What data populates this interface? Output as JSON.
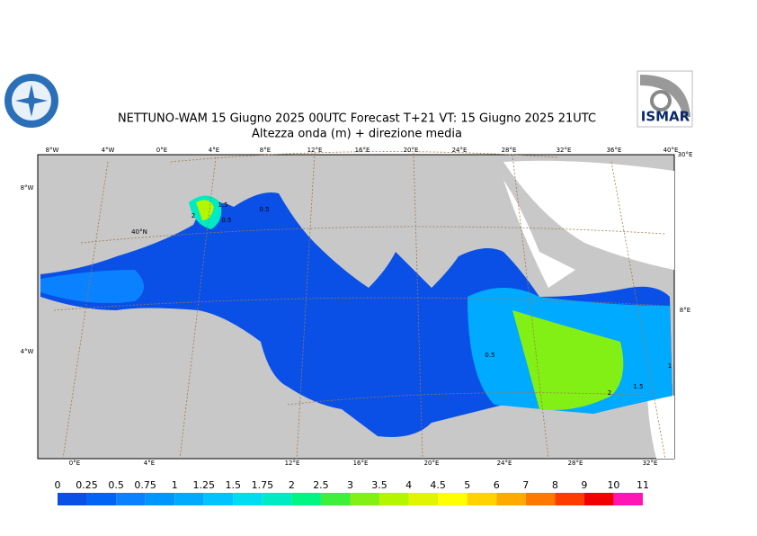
{
  "header": {
    "title": "NETTUNO-WAM  15   Giugno  2025 00UTC Forecast T+21 VT: 15   Giugno  2025 21UTC",
    "subtitle": "Altezza onda (m) + direzione media",
    "logo_right": "ISMAR"
  },
  "map": {
    "top_labels": [
      "8°W",
      "4°W",
      "0°E",
      "4°E",
      "8°E",
      "12°E",
      "16°E",
      "20°E",
      "24°E",
      "28°E",
      "32°E",
      "36°E",
      "40°E",
      "30°E"
    ],
    "bottom_labels": [
      "0°E",
      "4°E",
      "12°E",
      "16°E",
      "20°E",
      "24°E",
      "28°E",
      "32°E"
    ],
    "side_labels": [
      "8°W",
      "40°N",
      "4°W",
      "8°E"
    ],
    "contour_labels": [
      "2",
      "1.5",
      "0.5",
      "0.5",
      "0.5",
      "2",
      "1.5",
      "1"
    ]
  },
  "colorbar": {
    "labels": [
      0,
      0.25,
      0.5,
      0.75,
      1,
      1.25,
      1.5,
      1.75,
      2,
      2.5,
      3,
      3.5,
      4,
      4.5,
      5,
      6,
      7,
      8,
      9,
      10,
      11
    ],
    "colors": [
      "#0a50e6",
      "#0064f5",
      "#0a82ff",
      "#0096ff",
      "#00aaff",
      "#00c3ff",
      "#00dcf0",
      "#00ebc3",
      "#00f582",
      "#3cf03c",
      "#82f014",
      "#b4f500",
      "#e1f500",
      "#ffff00",
      "#ffd200",
      "#ffaa00",
      "#ff7800",
      "#ff3c00",
      "#f00000",
      "#ff14b4"
    ]
  }
}
